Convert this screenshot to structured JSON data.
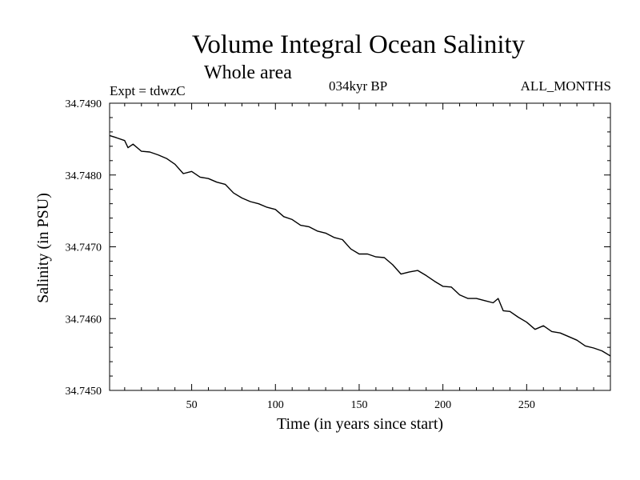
{
  "header": {
    "title": "Volume Integral Ocean Salinity",
    "subtitle": "Whole area",
    "expt": "Expt = tdwzC",
    "period": "034kyr BP",
    "months": "ALL_MONTHS"
  },
  "chart_data": {
    "type": "line",
    "title": "Volume Integral Ocean Salinity",
    "subtitle": "Whole area",
    "xlabel": "Time (in years since start)",
    "ylabel": "Salinity (in PSU)",
    "xlim": [
      1,
      300
    ],
    "ylim": [
      34.745,
      34.749
    ],
    "xticks": [
      50,
      100,
      150,
      200,
      250
    ],
    "yticks": [
      "34.7450",
      "34.7460",
      "34.7470",
      "34.7480",
      "34.7490"
    ],
    "grid": false,
    "series": [
      {
        "color": "#000000",
        "x": [
          1,
          5,
          10,
          12,
          15,
          20,
          25,
          30,
          35,
          40,
          45,
          50,
          55,
          60,
          65,
          70,
          75,
          80,
          85,
          90,
          95,
          100,
          105,
          110,
          115,
          120,
          125,
          130,
          135,
          140,
          145,
          150,
          155,
          160,
          165,
          170,
          175,
          180,
          185,
          190,
          195,
          200,
          205,
          210,
          215,
          220,
          225,
          230,
          233,
          236,
          240,
          245,
          250,
          255,
          260,
          265,
          270,
          275,
          280,
          285,
          290,
          295,
          300
        ],
        "y": [
          34.74855,
          34.74852,
          34.74848,
          34.74838,
          34.74843,
          34.74833,
          34.74832,
          34.74828,
          34.74823,
          34.74815,
          34.74802,
          34.74805,
          34.74797,
          34.74795,
          34.7479,
          34.74787,
          34.74775,
          34.74768,
          34.74763,
          34.7476,
          34.74755,
          34.74752,
          34.74742,
          34.74738,
          34.7473,
          34.74728,
          34.74722,
          34.74719,
          34.74713,
          34.7471,
          34.74697,
          34.7469,
          34.7469,
          34.74686,
          34.74685,
          34.74675,
          34.74662,
          34.74665,
          34.74667,
          34.7466,
          34.74652,
          34.74645,
          34.74644,
          34.74633,
          34.74628,
          34.74628,
          34.74625,
          34.74622,
          34.74628,
          34.74611,
          34.7461,
          34.74602,
          34.74595,
          34.74585,
          34.7459,
          34.74582,
          34.7458,
          34.74575,
          34.7457,
          34.74562,
          34.74559,
          34.74555,
          34.74548
        ]
      }
    ]
  }
}
